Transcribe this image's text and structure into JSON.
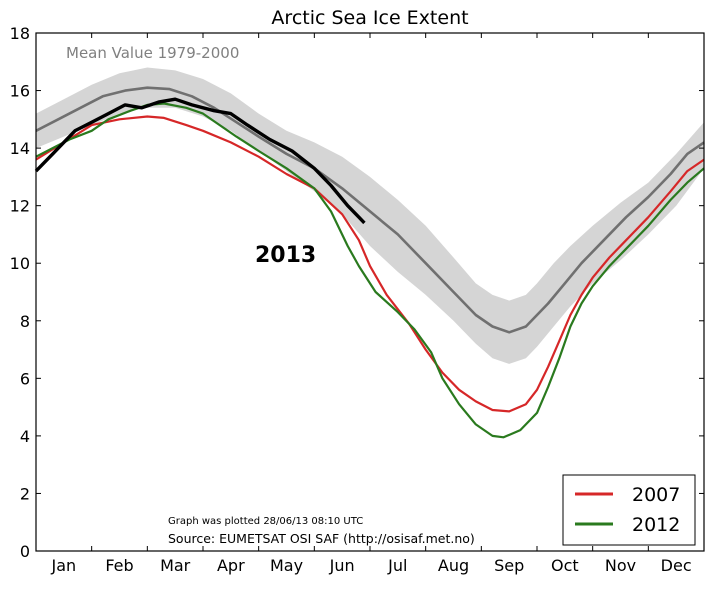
{
  "chart_data": {
    "type": "line",
    "title": "Arctic Sea Ice Extent",
    "mean_label": "Mean Value 1979-2000",
    "highlight_label": "2013",
    "note_plotted": "Graph was plotted 28/06/13 08:10 UTC",
    "note_source": "Source: EUMETSAT OSI SAF (http://osisaf.met.no)",
    "xlim": [
      0,
      12
    ],
    "ylim": [
      0,
      18
    ],
    "yticks": [
      0,
      2,
      4,
      6,
      8,
      10,
      12,
      14,
      16,
      18
    ],
    "month_labels": [
      "Jan",
      "Feb",
      "Mar",
      "Apr",
      "May",
      "Jun",
      "Jul",
      "Aug",
      "Sep",
      "Oct",
      "Nov",
      "Dec"
    ],
    "legend_position": "bottom-right",
    "series": [
      {
        "name": "2007",
        "color": "#d62728",
        "points": [
          [
            0,
            13.6
          ],
          [
            0.5,
            14.2
          ],
          [
            1.0,
            14.8
          ],
          [
            1.5,
            15.0
          ],
          [
            2.0,
            15.1
          ],
          [
            2.3,
            15.05
          ],
          [
            2.7,
            14.8
          ],
          [
            3.0,
            14.6
          ],
          [
            3.5,
            14.2
          ],
          [
            4.0,
            13.7
          ],
          [
            4.5,
            13.1
          ],
          [
            5.0,
            12.6
          ],
          [
            5.5,
            11.7
          ],
          [
            5.8,
            10.8
          ],
          [
            6.0,
            9.9
          ],
          [
            6.3,
            8.9
          ],
          [
            6.7,
            7.9
          ],
          [
            7.0,
            7.0
          ],
          [
            7.3,
            6.2
          ],
          [
            7.6,
            5.6
          ],
          [
            7.9,
            5.2
          ],
          [
            8.2,
            4.9
          ],
          [
            8.5,
            4.85
          ],
          [
            8.8,
            5.1
          ],
          [
            9.0,
            5.6
          ],
          [
            9.2,
            6.4
          ],
          [
            9.4,
            7.3
          ],
          [
            9.6,
            8.2
          ],
          [
            9.8,
            8.9
          ],
          [
            10.0,
            9.5
          ],
          [
            10.3,
            10.2
          ],
          [
            10.6,
            10.8
          ],
          [
            11.0,
            11.6
          ],
          [
            11.4,
            12.5
          ],
          [
            11.7,
            13.2
          ],
          [
            12.0,
            13.6
          ]
        ]
      },
      {
        "name": "2012",
        "color": "#2a7a1e",
        "points": [
          [
            0,
            13.7
          ],
          [
            0.3,
            14.0
          ],
          [
            0.6,
            14.3
          ],
          [
            1.0,
            14.6
          ],
          [
            1.3,
            15.0
          ],
          [
            1.7,
            15.3
          ],
          [
            2.0,
            15.5
          ],
          [
            2.3,
            15.55
          ],
          [
            2.7,
            15.4
          ],
          [
            3.0,
            15.2
          ],
          [
            3.3,
            14.8
          ],
          [
            3.6,
            14.4
          ],
          [
            4.0,
            13.9
          ],
          [
            4.5,
            13.3
          ],
          [
            5.0,
            12.6
          ],
          [
            5.3,
            11.8
          ],
          [
            5.6,
            10.6
          ],
          [
            5.8,
            9.9
          ],
          [
            6.1,
            9.0
          ],
          [
            6.5,
            8.3
          ],
          [
            6.8,
            7.7
          ],
          [
            7.1,
            6.9
          ],
          [
            7.3,
            6.0
          ],
          [
            7.6,
            5.1
          ],
          [
            7.9,
            4.4
          ],
          [
            8.2,
            4.0
          ],
          [
            8.4,
            3.95
          ],
          [
            8.7,
            4.2
          ],
          [
            9.0,
            4.8
          ],
          [
            9.2,
            5.7
          ],
          [
            9.4,
            6.7
          ],
          [
            9.6,
            7.8
          ],
          [
            9.8,
            8.6
          ],
          [
            10.0,
            9.2
          ],
          [
            10.3,
            9.9
          ],
          [
            10.6,
            10.5
          ],
          [
            11.0,
            11.3
          ],
          [
            11.4,
            12.2
          ],
          [
            11.7,
            12.8
          ],
          [
            12.0,
            13.3
          ]
        ]
      },
      {
        "name": "Mean 1979-2000",
        "color": "#707070",
        "points": [
          [
            0,
            14.6
          ],
          [
            0.4,
            15.0
          ],
          [
            0.8,
            15.4
          ],
          [
            1.2,
            15.8
          ],
          [
            1.6,
            16.0
          ],
          [
            2.0,
            16.1
          ],
          [
            2.4,
            16.05
          ],
          [
            2.8,
            15.8
          ],
          [
            3.2,
            15.4
          ],
          [
            3.6,
            14.9
          ],
          [
            4.0,
            14.4
          ],
          [
            4.5,
            13.8
          ],
          [
            5.0,
            13.3
          ],
          [
            5.5,
            12.6
          ],
          [
            6.0,
            11.8
          ],
          [
            6.5,
            11.0
          ],
          [
            7.0,
            10.0
          ],
          [
            7.5,
            9.0
          ],
          [
            7.9,
            8.2
          ],
          [
            8.2,
            7.8
          ],
          [
            8.5,
            7.6
          ],
          [
            8.8,
            7.8
          ],
          [
            9.0,
            8.2
          ],
          [
            9.2,
            8.6
          ],
          [
            9.5,
            9.3
          ],
          [
            9.8,
            10.0
          ],
          [
            10.2,
            10.8
          ],
          [
            10.6,
            11.6
          ],
          [
            11.0,
            12.3
          ],
          [
            11.4,
            13.1
          ],
          [
            11.7,
            13.8
          ],
          [
            12.0,
            14.2
          ]
        ]
      },
      {
        "name": "2013",
        "color": "#000000",
        "points": [
          [
            0,
            13.2
          ],
          [
            0.3,
            13.8
          ],
          [
            0.7,
            14.6
          ],
          [
            1.0,
            14.9
          ],
          [
            1.3,
            15.2
          ],
          [
            1.6,
            15.5
          ],
          [
            1.9,
            15.4
          ],
          [
            2.2,
            15.6
          ],
          [
            2.5,
            15.7
          ],
          [
            2.8,
            15.5
          ],
          [
            3.2,
            15.3
          ],
          [
            3.5,
            15.2
          ],
          [
            3.8,
            14.8
          ],
          [
            4.2,
            14.3
          ],
          [
            4.6,
            13.9
          ],
          [
            5.0,
            13.3
          ],
          [
            5.3,
            12.7
          ],
          [
            5.6,
            12.0
          ],
          [
            5.8,
            11.6
          ],
          [
            5.9,
            11.4
          ]
        ]
      }
    ],
    "band": {
      "name": "Mean Value 1979-2000",
      "color": "#d5d5d5",
      "upper": [
        [
          0,
          15.2
        ],
        [
          0.5,
          15.7
        ],
        [
          1.0,
          16.2
        ],
        [
          1.5,
          16.6
        ],
        [
          2.0,
          16.8
        ],
        [
          2.5,
          16.7
        ],
        [
          3.0,
          16.4
        ],
        [
          3.5,
          15.9
        ],
        [
          4.0,
          15.2
        ],
        [
          4.5,
          14.6
        ],
        [
          5.0,
          14.2
        ],
        [
          5.5,
          13.7
        ],
        [
          6.0,
          13.0
        ],
        [
          6.5,
          12.2
        ],
        [
          7.0,
          11.3
        ],
        [
          7.5,
          10.2
        ],
        [
          7.9,
          9.3
        ],
        [
          8.2,
          8.9
        ],
        [
          8.5,
          8.7
        ],
        [
          8.8,
          8.9
        ],
        [
          9.0,
          9.3
        ],
        [
          9.3,
          10.0
        ],
        [
          9.6,
          10.6
        ],
        [
          10.0,
          11.3
        ],
        [
          10.5,
          12.1
        ],
        [
          11.0,
          12.8
        ],
        [
          11.5,
          13.8
        ],
        [
          12.0,
          14.9
        ]
      ],
      "lower": [
        [
          0,
          14.0
        ],
        [
          0.5,
          14.4
        ],
        [
          1.0,
          14.8
        ],
        [
          1.5,
          15.2
        ],
        [
          2.0,
          15.4
        ],
        [
          2.5,
          15.4
        ],
        [
          3.0,
          15.1
        ],
        [
          3.5,
          14.6
        ],
        [
          4.0,
          13.9
        ],
        [
          4.5,
          13.2
        ],
        [
          5.0,
          12.5
        ],
        [
          5.5,
          11.7
        ],
        [
          6.0,
          10.6
        ],
        [
          6.5,
          9.7
        ],
        [
          7.0,
          8.9
        ],
        [
          7.5,
          8.0
        ],
        [
          7.9,
          7.2
        ],
        [
          8.2,
          6.7
        ],
        [
          8.5,
          6.5
        ],
        [
          8.8,
          6.7
        ],
        [
          9.0,
          7.1
        ],
        [
          9.3,
          7.8
        ],
        [
          9.6,
          8.5
        ],
        [
          10.0,
          9.3
        ],
        [
          10.5,
          10.1
        ],
        [
          11.0,
          11.0
        ],
        [
          11.5,
          12.0
        ],
        [
          12.0,
          13.3
        ]
      ]
    },
    "legend_entries": [
      {
        "label": "2007",
        "color": "#d62728"
      },
      {
        "label": "2012",
        "color": "#2a7a1e"
      }
    ]
  }
}
